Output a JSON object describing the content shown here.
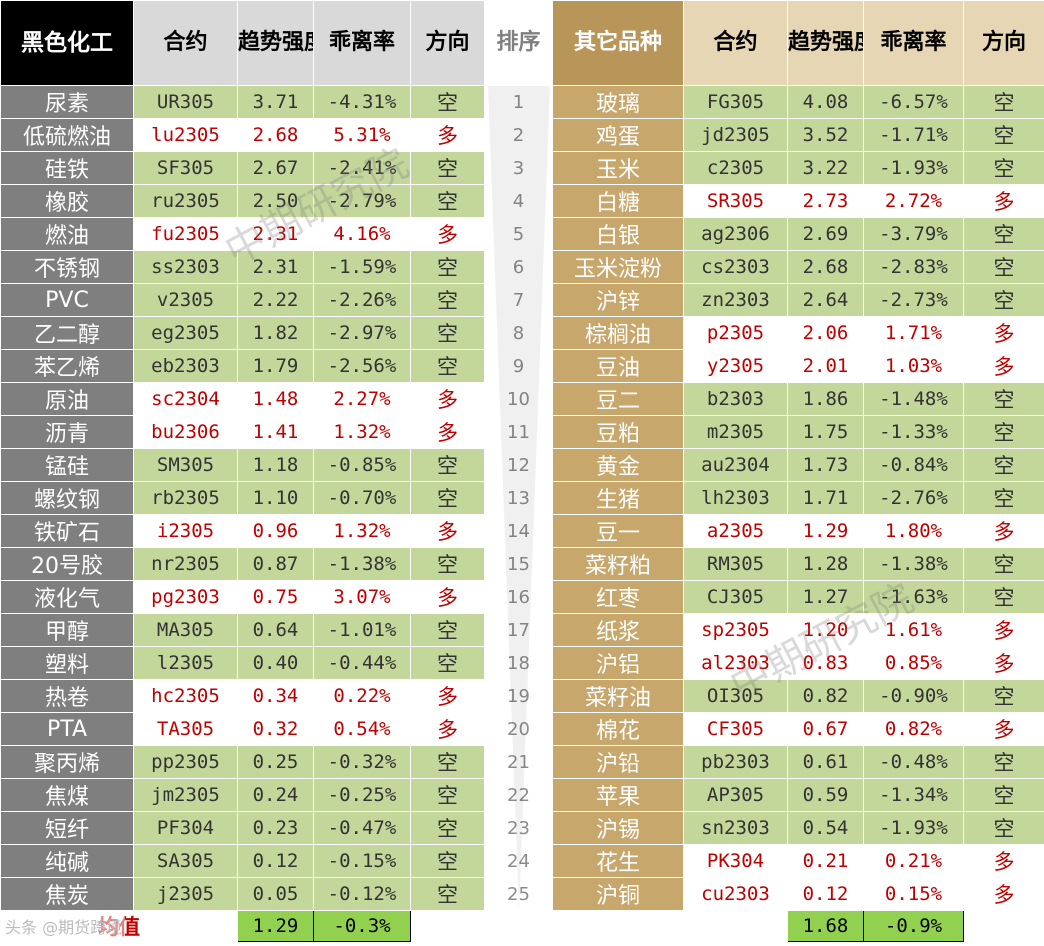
{
  "headers": {
    "group_left": "黑色化工",
    "contract": "合约",
    "trend_strength": "趋势强度",
    "deviation": "乖离率",
    "direction": "方向",
    "rank": "排序",
    "group_right": "其它品种"
  },
  "left_rows": [
    {
      "name": "尿素",
      "contract": "UR305",
      "strength": "3.71",
      "deviation": "-4.31%",
      "direction": "空"
    },
    {
      "name": "低硫燃油",
      "contract": "lu2305",
      "strength": "2.68",
      "deviation": "5.31%",
      "direction": "多"
    },
    {
      "name": "硅铁",
      "contract": "SF305",
      "strength": "2.67",
      "deviation": "-2.41%",
      "direction": "空"
    },
    {
      "name": "橡胶",
      "contract": "ru2305",
      "strength": "2.50",
      "deviation": "-2.79%",
      "direction": "空"
    },
    {
      "name": "燃油",
      "contract": "fu2305",
      "strength": "2.31",
      "deviation": "4.16%",
      "direction": "多"
    },
    {
      "name": "不锈钢",
      "contract": "ss2303",
      "strength": "2.31",
      "deviation": "-1.59%",
      "direction": "空"
    },
    {
      "name": "PVC",
      "contract": "v2305",
      "strength": "2.22",
      "deviation": "-2.26%",
      "direction": "空"
    },
    {
      "name": "乙二醇",
      "contract": "eg2305",
      "strength": "1.82",
      "deviation": "-2.97%",
      "direction": "空"
    },
    {
      "name": "苯乙烯",
      "contract": "eb2303",
      "strength": "1.79",
      "deviation": "-2.56%",
      "direction": "空"
    },
    {
      "name": "原油",
      "contract": "sc2304",
      "strength": "1.48",
      "deviation": "2.27%",
      "direction": "多"
    },
    {
      "name": "沥青",
      "contract": "bu2306",
      "strength": "1.41",
      "deviation": "1.32%",
      "direction": "多"
    },
    {
      "name": "锰硅",
      "contract": "SM305",
      "strength": "1.18",
      "deviation": "-0.85%",
      "direction": "空"
    },
    {
      "name": "螺纹钢",
      "contract": "rb2305",
      "strength": "1.10",
      "deviation": "-0.70%",
      "direction": "空"
    },
    {
      "name": "铁矿石",
      "contract": "i2305",
      "strength": "0.96",
      "deviation": "1.32%",
      "direction": "多"
    },
    {
      "name": "20号胶",
      "contract": "nr2305",
      "strength": "0.87",
      "deviation": "-1.38%",
      "direction": "空"
    },
    {
      "name": "液化气",
      "contract": "pg2303",
      "strength": "0.75",
      "deviation": "3.07%",
      "direction": "多"
    },
    {
      "name": "甲醇",
      "contract": "MA305",
      "strength": "0.64",
      "deviation": "-1.01%",
      "direction": "空"
    },
    {
      "name": "塑料",
      "contract": "l2305",
      "strength": "0.40",
      "deviation": "-0.44%",
      "direction": "空"
    },
    {
      "name": "热卷",
      "contract": "hc2305",
      "strength": "0.34",
      "deviation": "0.22%",
      "direction": "多"
    },
    {
      "name": "PTA",
      "contract": "TA305",
      "strength": "0.32",
      "deviation": "0.54%",
      "direction": "多"
    },
    {
      "name": "聚丙烯",
      "contract": "pp2305",
      "strength": "0.25",
      "deviation": "-0.32%",
      "direction": "空"
    },
    {
      "name": "焦煤",
      "contract": "jm2305",
      "strength": "0.24",
      "deviation": "-0.25%",
      "direction": "空"
    },
    {
      "name": "短纤",
      "contract": "PF304",
      "strength": "0.23",
      "deviation": "-0.47%",
      "direction": "空"
    },
    {
      "name": "纯碱",
      "contract": "SA305",
      "strength": "0.12",
      "deviation": "-0.15%",
      "direction": "空"
    },
    {
      "name": "焦炭",
      "contract": "j2305",
      "strength": "0.05",
      "deviation": "-0.12%",
      "direction": "空"
    }
  ],
  "right_rows": [
    {
      "name": "玻璃",
      "contract": "FG305",
      "strength": "4.08",
      "deviation": "-6.57%",
      "direction": "空"
    },
    {
      "name": "鸡蛋",
      "contract": "jd2305",
      "strength": "3.52",
      "deviation": "-1.71%",
      "direction": "空"
    },
    {
      "name": "玉米",
      "contract": "c2305",
      "strength": "3.22",
      "deviation": "-1.93%",
      "direction": "空"
    },
    {
      "name": "白糖",
      "contract": "SR305",
      "strength": "2.73",
      "deviation": "2.72%",
      "direction": "多"
    },
    {
      "name": "白银",
      "contract": "ag2306",
      "strength": "2.69",
      "deviation": "-3.79%",
      "direction": "空"
    },
    {
      "name": "玉米淀粉",
      "contract": "cs2303",
      "strength": "2.68",
      "deviation": "-2.83%",
      "direction": "空"
    },
    {
      "name": "沪锌",
      "contract": "zn2303",
      "strength": "2.64",
      "deviation": "-2.73%",
      "direction": "空"
    },
    {
      "name": "棕榈油",
      "contract": "p2305",
      "strength": "2.06",
      "deviation": "1.71%",
      "direction": "多"
    },
    {
      "name": "豆油",
      "contract": "y2305",
      "strength": "2.01",
      "deviation": "1.03%",
      "direction": "多"
    },
    {
      "name": "豆二",
      "contract": "b2303",
      "strength": "1.86",
      "deviation": "-1.48%",
      "direction": "空"
    },
    {
      "name": "豆粕",
      "contract": "m2305",
      "strength": "1.75",
      "deviation": "-1.33%",
      "direction": "空"
    },
    {
      "name": "黄金",
      "contract": "au2304",
      "strength": "1.73",
      "deviation": "-0.84%",
      "direction": "空"
    },
    {
      "name": "生猪",
      "contract": "lh2303",
      "strength": "1.71",
      "deviation": "-2.76%",
      "direction": "空"
    },
    {
      "name": "豆一",
      "contract": "a2305",
      "strength": "1.29",
      "deviation": "1.80%",
      "direction": "多"
    },
    {
      "name": "菜籽粕",
      "contract": "RM305",
      "strength": "1.28",
      "deviation": "-1.38%",
      "direction": "空"
    },
    {
      "name": "红枣",
      "contract": "CJ305",
      "strength": "1.27",
      "deviation": "-1.63%",
      "direction": "空"
    },
    {
      "name": "纸浆",
      "contract": "sp2305",
      "strength": "1.20",
      "deviation": "1.61%",
      "direction": "多"
    },
    {
      "name": "沪铝",
      "contract": "al2303",
      "strength": "0.83",
      "deviation": "0.85%",
      "direction": "多"
    },
    {
      "name": "菜籽油",
      "contract": "OI305",
      "strength": "0.82",
      "deviation": "-0.90%",
      "direction": "空"
    },
    {
      "name": "棉花",
      "contract": "CF305",
      "strength": "0.67",
      "deviation": "0.82%",
      "direction": "多"
    },
    {
      "name": "沪铅",
      "contract": "pb2303",
      "strength": "0.61",
      "deviation": "-0.48%",
      "direction": "空"
    },
    {
      "name": "苹果",
      "contract": "AP305",
      "strength": "0.59",
      "deviation": "-1.34%",
      "direction": "空"
    },
    {
      "name": "沪锡",
      "contract": "sn2303",
      "strength": "0.54",
      "deviation": "-1.93%",
      "direction": "空"
    },
    {
      "name": "花生",
      "contract": "PK304",
      "strength": "0.21",
      "deviation": "0.21%",
      "direction": "多"
    },
    {
      "name": "沪铜",
      "contract": "cu2303",
      "strength": "0.12",
      "deviation": "0.15%",
      "direction": "多"
    }
  ],
  "footer": {
    "label": "均值",
    "left_avg_strength": "1.29",
    "left_avg_deviation": "-0.3%",
    "right_avg_strength": "1.68",
    "right_avg_deviation": "-0.9%"
  },
  "watermark": "中期研究院",
  "badge_text": "头条 @期货跨境",
  "colors": {
    "bear_bg": "#c4d79b",
    "bull_text": "#c00000",
    "left_name_bg": "#7f7f7f",
    "right_name_bg": "#c7a76c"
  }
}
